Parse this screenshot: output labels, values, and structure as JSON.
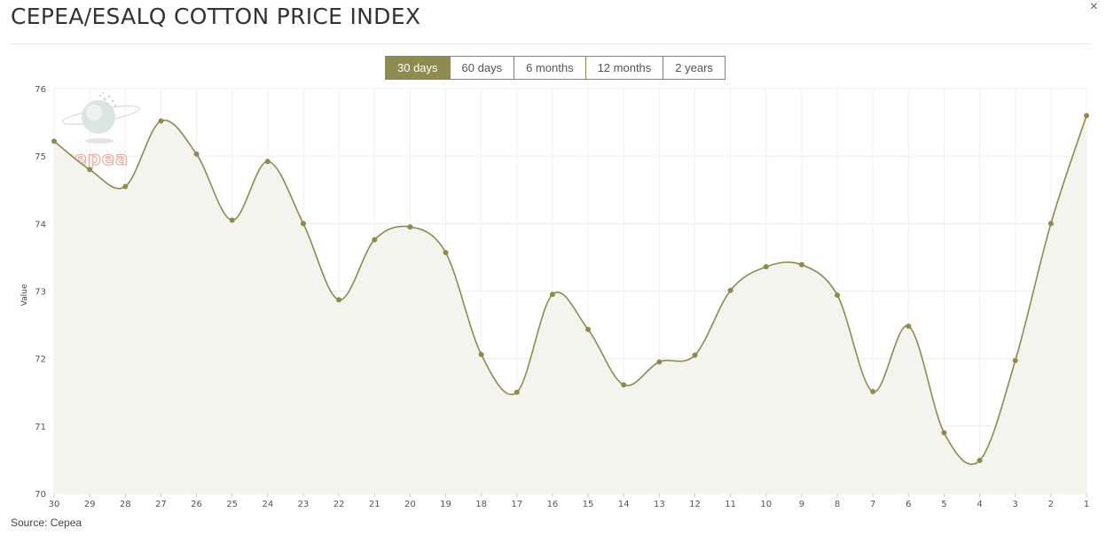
{
  "header": {
    "title": "CEPEA/ESALQ COTTON PRICE INDEX",
    "close_icon": "×"
  },
  "range_selector": {
    "buttons": [
      "30 days",
      "60 days",
      "6 months",
      "12 months",
      "2 years"
    ],
    "active": "30 days"
  },
  "footer": {
    "source": "Source: Cepea"
  },
  "watermark": {
    "text": "cepea"
  },
  "colors": {
    "accent": "#8e8b4f",
    "line": "#8e8b4f",
    "area": "#f4f4ee",
    "grid": "#ececec",
    "watermark": "#e9a9a0"
  },
  "chart_data": {
    "type": "line",
    "x": [
      "30",
      "29",
      "28",
      "27",
      "26",
      "25",
      "24",
      "23",
      "22",
      "21",
      "20",
      "19",
      "18",
      "17",
      "16",
      "15",
      "14",
      "13",
      "12",
      "11",
      "10",
      "9",
      "8",
      "7",
      "6",
      "5",
      "4",
      "3",
      "2",
      "1"
    ],
    "series": [
      {
        "values": [
          75.22,
          74.8,
          74.55,
          75.52,
          75.03,
          74.05,
          74.92,
          74.0,
          72.87,
          73.76,
          73.95,
          73.57,
          72.06,
          71.5,
          72.95,
          72.43,
          71.61,
          71.95,
          72.05,
          73.01,
          73.36,
          73.39,
          72.94,
          71.51,
          72.48,
          70.9,
          70.49,
          71.97,
          74.0,
          75.6
        ]
      }
    ],
    "ylabel": "Value",
    "ylim": [
      70,
      76
    ],
    "yticks": [
      70,
      71,
      72,
      73,
      74,
      75,
      76
    ],
    "grid": true,
    "area_fill": true
  }
}
